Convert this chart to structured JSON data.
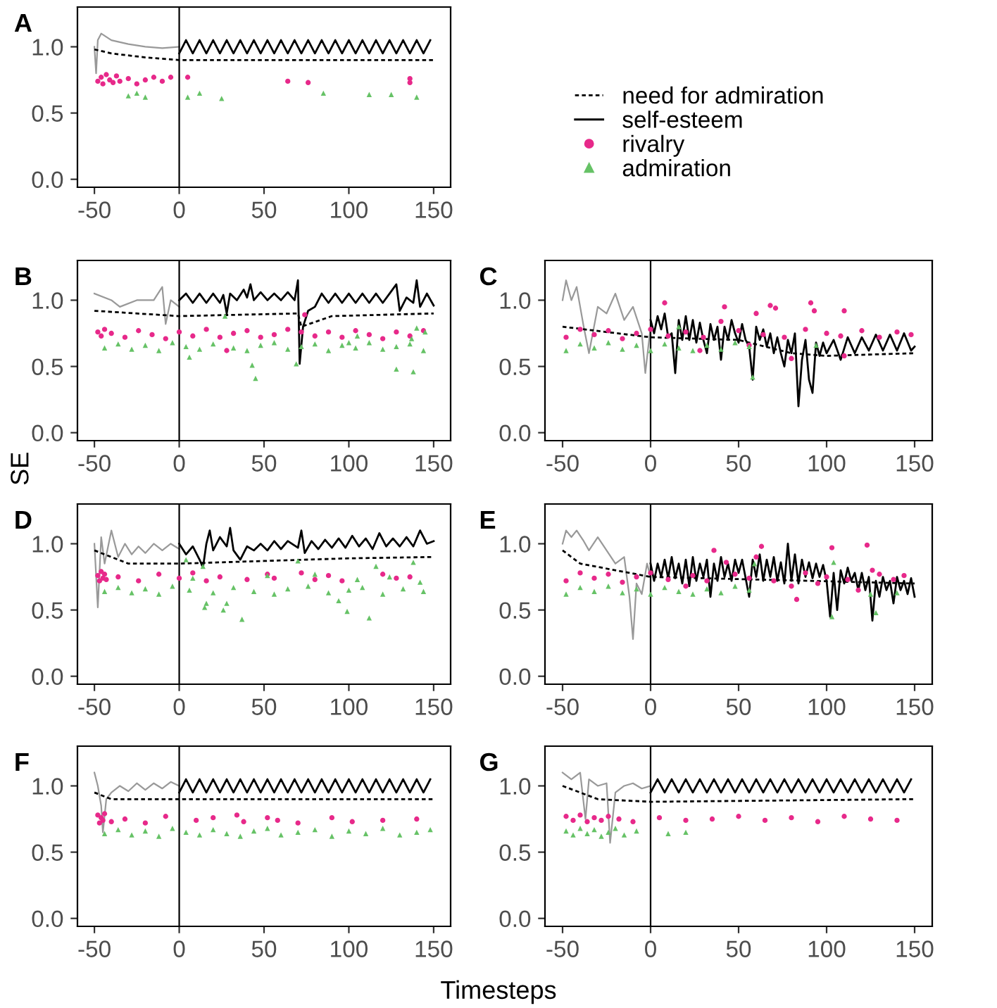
{
  "chart_data": [
    {
      "type": "line",
      "title": "A",
      "legend": "right",
      "xlim": [
        -60,
        160
      ],
      "ylim": [
        -0.06,
        1.3
      ],
      "xticks": [
        -50,
        0,
        50,
        100,
        150
      ],
      "yticks": [
        {
          "value": 0,
          "label": "0.0"
        },
        {
          "value": 0.5,
          "label": "0.5"
        },
        {
          "value": 1,
          "label": "1.0"
        }
      ],
      "ref_lines": [
        {
          "axis": "x",
          "value": 0,
          "color": "#000000"
        }
      ],
      "series": [
        {
          "type": "line",
          "color": "#999999",
          "x": [
            -50,
            -49,
            -48,
            -46,
            -40,
            -30,
            -20,
            -10,
            0
          ],
          "values": [
            1.0,
            0.8,
            1.05,
            1.1,
            1.05,
            1.02,
            1.0,
            0.99,
            1.0
          ]
        },
        {
          "name": "need for admiration",
          "type": "line",
          "line_style": "dashed",
          "color": "#000000",
          "x": [
            -50,
            -40,
            -20,
            0,
            150
          ],
          "values": [
            0.98,
            0.95,
            0.92,
            0.9,
            0.9
          ]
        },
        {
          "name": "self-esteem",
          "type": "line",
          "line_style": "solid",
          "color": "#000000",
          "x": [
            0,
            4,
            8,
            12,
            16,
            20,
            24,
            28,
            32,
            36,
            40,
            44,
            48,
            52,
            56,
            60,
            64,
            68,
            72,
            76,
            80,
            84,
            88,
            92,
            96,
            100,
            104,
            108,
            112,
            116,
            120,
            124,
            128,
            132,
            136,
            140,
            144,
            148
          ],
          "values": [
            0.95,
            1.05,
            0.95,
            1.05,
            0.95,
            1.05,
            0.95,
            1.05,
            0.95,
            1.05,
            0.95,
            1.05,
            0.95,
            1.05,
            0.95,
            1.05,
            0.95,
            1.05,
            0.95,
            1.05,
            0.95,
            1.05,
            0.95,
            1.05,
            0.95,
            1.05,
            0.95,
            1.05,
            0.95,
            1.05,
            0.95,
            1.05,
            0.95,
            1.05,
            0.95,
            1.05,
            0.95,
            1.05
          ]
        },
        {
          "name": "rivalry",
          "type": "scatter",
          "marker": "circle",
          "color": "#e7298a",
          "x": [
            -48,
            -46,
            -45,
            -43,
            -41,
            -39,
            -37,
            -35,
            -30,
            -25,
            -20,
            -15,
            -10,
            -5,
            5,
            64,
            76,
            136,
            136
          ],
          "values": [
            0.74,
            0.77,
            0.72,
            0.79,
            0.75,
            0.73,
            0.78,
            0.74,
            0.76,
            0.72,
            0.75,
            0.77,
            0.74,
            0.77,
            0.77,
            0.74,
            0.73,
            0.76,
            0.73
          ]
        },
        {
          "name": "admiration",
          "type": "scatter",
          "marker": "triangle",
          "color": "#66c266",
          "x": [
            -30,
            -25,
            -20,
            5,
            12,
            25,
            85,
            112,
            125,
            140
          ],
          "values": [
            0.63,
            0.65,
            0.62,
            0.62,
            0.65,
            0.61,
            0.65,
            0.64,
            0.64,
            0.62
          ]
        }
      ]
    },
    {
      "type": "line",
      "title": "B",
      "xlim": [
        -60,
        160
      ],
      "ylim": [
        -0.06,
        1.3
      ],
      "xticks": [
        -50,
        0,
        50,
        100,
        150
      ],
      "yticks": [
        {
          "value": 0,
          "label": "0.0"
        },
        {
          "value": 0.5,
          "label": "0.5"
        },
        {
          "value": 1,
          "label": "1.0"
        }
      ],
      "ref_lines": [
        {
          "axis": "x",
          "value": 0,
          "color": "#000000"
        }
      ],
      "series": [
        {
          "type": "line",
          "color": "#999999",
          "x": [
            -50,
            -40,
            -35,
            -25,
            -15,
            -10,
            -8,
            -5,
            0
          ],
          "values": [
            1.05,
            1.0,
            0.95,
            1.0,
            1.0,
            1.1,
            0.82,
            1.0,
            0.95
          ]
        },
        {
          "type": "line",
          "line_style": "dashed",
          "color": "#000000",
          "x": [
            -50,
            0,
            70,
            72,
            90,
            150
          ],
          "values": [
            0.92,
            0.88,
            0.9,
            0.8,
            0.88,
            0.9
          ]
        },
        {
          "type": "line",
          "line_style": "solid",
          "color": "#000000",
          "x": [
            0,
            4,
            8,
            12,
            16,
            20,
            24,
            26,
            28,
            30,
            34,
            38,
            40,
            42,
            44,
            48,
            52,
            56,
            60,
            64,
            68,
            70,
            71,
            73,
            76,
            80,
            84,
            88,
            92,
            96,
            100,
            104,
            108,
            112,
            116,
            120,
            124,
            128,
            130,
            134,
            138,
            140,
            142,
            146,
            150
          ],
          "values": [
            1.0,
            1.05,
            0.98,
            1.05,
            0.98,
            1.05,
            0.98,
            1.04,
            0.9,
            1.05,
            1.0,
            1.08,
            1.02,
            1.12,
            1.0,
            1.06,
            1.0,
            1.05,
            1.0,
            1.06,
            1.0,
            1.15,
            0.52,
            0.8,
            0.92,
            0.95,
            1.05,
            0.98,
            1.05,
            0.98,
            1.05,
            0.98,
            1.05,
            0.98,
            1.05,
            0.98,
            1.05,
            1.12,
            0.92,
            1.02,
            0.98,
            1.15,
            0.95,
            1.05,
            0.96
          ]
        },
        {
          "type": "scatter",
          "marker": "circle",
          "color": "#e7298a",
          "x": [
            -48,
            -46,
            -44,
            -40,
            -32,
            -24,
            -16,
            -8,
            0,
            8,
            16,
            24,
            32,
            40,
            48,
            56,
            64,
            80,
            88,
            96,
            104,
            112,
            120,
            128,
            136,
            144,
            28,
            72,
            74
          ],
          "values": [
            0.76,
            0.73,
            0.78,
            0.75,
            0.72,
            0.77,
            0.74,
            0.71,
            0.76,
            0.73,
            0.78,
            0.72,
            0.75,
            0.77,
            0.72,
            0.74,
            0.78,
            0.73,
            0.76,
            0.72,
            0.77,
            0.74,
            0.71,
            0.76,
            0.73,
            0.77,
            0.62,
            0.76,
            0.89
          ]
        },
        {
          "type": "scatter",
          "marker": "triangle",
          "color": "#66c266",
          "x": [
            -44,
            -36,
            -28,
            -20,
            -12,
            -4,
            4,
            12,
            20,
            32,
            40,
            48,
            56,
            64,
            72,
            80,
            88,
            96,
            104,
            112,
            120,
            128,
            136,
            144,
            27,
            6,
            43,
            45,
            69,
            100,
            105,
            128,
            138,
            140,
            145,
            137
          ],
          "values": [
            0.64,
            0.67,
            0.63,
            0.66,
            0.62,
            0.68,
            0.65,
            0.63,
            0.67,
            0.64,
            0.62,
            0.66,
            0.68,
            0.63,
            0.65,
            0.67,
            0.62,
            0.66,
            0.64,
            0.68,
            0.63,
            0.65,
            0.67,
            0.62,
            0.88,
            0.57,
            0.51,
            0.41,
            0.52,
            0.68,
            0.73,
            0.48,
            0.46,
            0.79,
            0.76,
            0.71
          ]
        }
      ]
    },
    {
      "type": "line",
      "title": "C",
      "xlim": [
        -60,
        160
      ],
      "ylim": [
        -0.06,
        1.3
      ],
      "xticks": [
        -50,
        0,
        50,
        100,
        150
      ],
      "yticks": [
        {
          "value": 0,
          "label": "0.0"
        },
        {
          "value": 0.5,
          "label": "0.5"
        },
        {
          "value": 1,
          "label": "1.0"
        }
      ],
      "ref_lines": [
        {
          "axis": "x",
          "value": 0,
          "color": "#000000"
        }
      ],
      "series": [
        {
          "type": "line",
          "color": "#999999",
          "x": [
            -50,
            -48,
            -45,
            -42,
            -38,
            -35,
            -30,
            -25,
            -20,
            -15,
            -10,
            -5,
            -3,
            0
          ],
          "values": [
            1.0,
            1.15,
            1.0,
            1.1,
            0.8,
            0.6,
            0.95,
            0.9,
            1.05,
            0.85,
            0.95,
            0.75,
            0.45,
            0.8
          ]
        },
        {
          "type": "line",
          "line_style": "dashed",
          "color": "#000000",
          "x": [
            -50,
            0,
            50,
            80,
            100,
            150
          ],
          "values": [
            0.8,
            0.72,
            0.7,
            0.6,
            0.58,
            0.6
          ]
        },
        {
          "type": "line",
          "line_style": "solid",
          "color": "#000000",
          "x": [
            0,
            2,
            4,
            6,
            8,
            10,
            12,
            14,
            16,
            18,
            20,
            22,
            24,
            26,
            28,
            30,
            32,
            34,
            36,
            38,
            40,
            42,
            44,
            46,
            48,
            50,
            52,
            54,
            56,
            58,
            60,
            62,
            64,
            66,
            68,
            70,
            72,
            74,
            76,
            78,
            80,
            82,
            84,
            86,
            88,
            90,
            92,
            94,
            96,
            98,
            100,
            104,
            108,
            112,
            116,
            120,
            124,
            128,
            132,
            136,
            140,
            144,
            148,
            150
          ],
          "values": [
            0.85,
            0.75,
            0.88,
            0.78,
            0.9,
            0.72,
            0.75,
            0.45,
            0.85,
            0.7,
            0.88,
            0.7,
            0.85,
            0.68,
            0.83,
            0.7,
            0.6,
            0.82,
            0.7,
            0.8,
            0.55,
            0.8,
            0.7,
            0.85,
            0.75,
            0.68,
            0.82,
            0.7,
            0.65,
            0.4,
            0.8,
            0.7,
            0.78,
            0.65,
            0.75,
            0.6,
            0.72,
            0.6,
            0.5,
            0.7,
            0.6,
            0.75,
            0.2,
            0.55,
            0.7,
            0.4,
            0.3,
            0.68,
            0.58,
            0.68,
            0.6,
            0.7,
            0.55,
            0.72,
            0.6,
            0.72,
            0.62,
            0.74,
            0.62,
            0.74,
            0.62,
            0.75,
            0.62,
            0.65
          ]
        },
        {
          "type": "scatter",
          "marker": "circle",
          "color": "#e7298a",
          "x": [
            -48,
            -40,
            -32,
            -24,
            -16,
            -8,
            0,
            10,
            20,
            30,
            50,
            64,
            76,
            88,
            100,
            108,
            120,
            130,
            140,
            148,
            8,
            42,
            40,
            60,
            68,
            71,
            91,
            93,
            110,
            56,
            28,
            80,
            110
          ],
          "values": [
            0.72,
            0.78,
            0.74,
            0.77,
            0.71,
            0.75,
            0.78,
            0.73,
            0.76,
            0.72,
            0.77,
            0.74,
            0.72,
            0.78,
            0.75,
            0.73,
            0.77,
            0.72,
            0.76,
            0.74,
            0.98,
            0.95,
            0.84,
            0.9,
            0.96,
            0.94,
            0.98,
            0.92,
            0.92,
            0.66,
            0.62,
            0.56,
            0.58
          ]
        },
        {
          "type": "scatter",
          "marker": "triangle",
          "color": "#66c266",
          "x": [
            -48,
            -40,
            -32,
            -24,
            -16,
            -8,
            0,
            8,
            16,
            24,
            32,
            40,
            48,
            56,
            58,
            16,
            94
          ],
          "values": [
            0.62,
            0.67,
            0.64,
            0.68,
            0.63,
            0.66,
            0.62,
            0.67,
            0.64,
            0.62,
            0.66,
            0.63,
            0.68,
            0.65,
            0.42,
            0.8,
            0.66
          ]
        }
      ]
    },
    {
      "type": "line",
      "title": "D",
      "ylabel": "SE",
      "xlim": [
        -60,
        160
      ],
      "ylim": [
        -0.06,
        1.3
      ],
      "xticks": [
        -50,
        0,
        50,
        100,
        150
      ],
      "yticks": [
        {
          "value": 0,
          "label": "0.0"
        },
        {
          "value": 0.5,
          "label": "0.5"
        },
        {
          "value": 1,
          "label": "1.0"
        }
      ],
      "ref_lines": [
        {
          "axis": "x",
          "value": 0,
          "color": "#000000"
        }
      ],
      "series": [
        {
          "type": "line",
          "color": "#999999",
          "x": [
            -50,
            -48,
            -46,
            -44,
            -40,
            -36,
            -32,
            -28,
            -24,
            -20,
            -15,
            -10,
            -5,
            0
          ],
          "values": [
            1.0,
            0.52,
            1.05,
            0.85,
            1.1,
            0.9,
            1.0,
            0.92,
            0.98,
            0.93,
            1.0,
            0.95,
            1.0,
            0.96
          ]
        },
        {
          "type": "line",
          "line_style": "dashed",
          "color": "#000000",
          "x": [
            -50,
            -30,
            0,
            50,
            100,
            150
          ],
          "values": [
            0.95,
            0.85,
            0.85,
            0.87,
            0.89,
            0.9
          ]
        },
        {
          "type": "line",
          "line_style": "solid",
          "color": "#000000",
          "x": [
            0,
            4,
            8,
            12,
            14,
            16,
            18,
            20,
            24,
            28,
            30,
            32,
            36,
            40,
            44,
            48,
            52,
            56,
            60,
            64,
            70,
            72,
            74,
            78,
            82,
            86,
            90,
            94,
            98,
            102,
            106,
            110,
            114,
            118,
            122,
            126,
            130,
            134,
            138,
            142,
            146,
            150
          ],
          "values": [
            1.0,
            0.92,
            0.98,
            0.88,
            0.82,
            1.0,
            1.1,
            0.95,
            1.05,
            0.98,
            1.12,
            0.95,
            0.88,
            0.98,
            0.95,
            1.0,
            0.95,
            1.02,
            0.96,
            1.02,
            0.97,
            1.1,
            0.93,
            1.02,
            0.96,
            1.03,
            0.97,
            1.04,
            0.97,
            1.06,
            0.98,
            1.04,
            0.96,
            1.08,
            0.98,
            1.04,
            0.98,
            1.05,
            0.98,
            1.1,
            1.0,
            1.02
          ]
        },
        {
          "type": "scatter",
          "marker": "circle",
          "color": "#e7298a",
          "x": [
            -48,
            -47,
            -46,
            -45,
            -44,
            -43,
            -36,
            -24,
            -12,
            0,
            8,
            16,
            24,
            40,
            52,
            56,
            72,
            80,
            88,
            96,
            120,
            128,
            136
          ],
          "values": [
            0.76,
            0.72,
            0.79,
            0.74,
            0.77,
            0.73,
            0.75,
            0.72,
            0.77,
            0.74,
            0.78,
            0.72,
            0.75,
            0.73,
            0.77,
            0.74,
            0.78,
            0.73,
            0.76,
            0.72,
            0.77,
            0.74,
            0.75
          ]
        },
        {
          "type": "scatter",
          "marker": "triangle",
          "color": "#66c266",
          "x": [
            -44,
            -36,
            -28,
            -20,
            -12,
            -4,
            6,
            20,
            32,
            44,
            56,
            64,
            76,
            88,
            100,
            108,
            120,
            132,
            144,
            4,
            14,
            16,
            15,
            26,
            28,
            37,
            70,
            94,
            99,
            112,
            116,
            124,
            138,
            142,
            8,
            52,
            80,
            105
          ],
          "values": [
            0.64,
            0.67,
            0.63,
            0.66,
            0.62,
            0.68,
            0.65,
            0.63,
            0.67,
            0.64,
            0.62,
            0.66,
            0.68,
            0.63,
            0.65,
            0.67,
            0.62,
            0.66,
            0.64,
            0.88,
            0.83,
            0.55,
            0.52,
            0.5,
            0.55,
            0.43,
            0.87,
            0.57,
            0.49,
            0.44,
            0.83,
            0.75,
            0.86,
            0.71,
            0.74,
            0.76,
            0.77,
            0.73
          ]
        }
      ]
    },
    {
      "type": "line",
      "title": "E",
      "xlim": [
        -60,
        160
      ],
      "ylim": [
        -0.06,
        1.3
      ],
      "xticks": [
        -50,
        0,
        50,
        100,
        150
      ],
      "yticks": [
        {
          "value": 0,
          "label": "0.0"
        },
        {
          "value": 0.5,
          "label": "0.5"
        },
        {
          "value": 1,
          "label": "1.0"
        }
      ],
      "ref_lines": [
        {
          "axis": "x",
          "value": 0,
          "color": "#000000"
        }
      ],
      "series": [
        {
          "type": "line",
          "color": "#999999",
          "x": [
            -50,
            -48,
            -45,
            -42,
            -38,
            -35,
            -30,
            -25,
            -20,
            -15,
            -12,
            -10,
            -8,
            -5,
            -2,
            0
          ],
          "values": [
            1.0,
            1.1,
            1.05,
            1.1,
            1.02,
            0.95,
            1.05,
            0.95,
            0.85,
            0.9,
            0.6,
            0.28,
            0.7,
            0.62,
            0.85,
            0.75
          ]
        },
        {
          "type": "line",
          "line_style": "dashed",
          "color": "#000000",
          "x": [
            -50,
            -40,
            0,
            150
          ],
          "values": [
            0.95,
            0.85,
            0.75,
            0.7
          ]
        },
        {
          "type": "line",
          "line_style": "solid",
          "color": "#000000",
          "x": [
            0,
            2,
            4,
            6,
            8,
            10,
            12,
            14,
            16,
            18,
            20,
            22,
            24,
            26,
            28,
            30,
            32,
            34,
            36,
            38,
            40,
            42,
            44,
            46,
            48,
            50,
            52,
            56,
            58,
            60,
            62,
            64,
            66,
            68,
            70,
            72,
            74,
            76,
            78,
            80,
            82,
            84,
            86,
            88,
            90,
            92,
            94,
            96,
            98,
            100,
            102,
            104,
            106,
            108,
            110,
            112,
            114,
            116,
            118,
            120,
            122,
            124,
            126,
            128,
            130,
            132,
            134,
            136,
            138,
            140,
            142,
            144,
            146,
            148,
            150
          ],
          "values": [
            0.85,
            0.72,
            0.85,
            0.75,
            0.88,
            0.74,
            0.9,
            0.74,
            0.85,
            0.7,
            0.88,
            0.68,
            0.9,
            0.72,
            0.85,
            0.75,
            0.88,
            0.6,
            0.85,
            0.72,
            0.9,
            0.75,
            0.85,
            0.72,
            0.88,
            0.78,
            0.88,
            0.6,
            0.88,
            0.75,
            0.92,
            0.72,
            0.88,
            0.75,
            0.9,
            0.72,
            0.86,
            0.7,
            1.0,
            0.72,
            0.92,
            0.7,
            0.88,
            0.75,
            0.86,
            0.74,
            0.85,
            0.75,
            0.84,
            0.72,
            0.45,
            0.78,
            0.5,
            0.8,
            0.7,
            0.82,
            0.72,
            0.78,
            0.65,
            0.78,
            0.65,
            0.75,
            0.42,
            0.72,
            0.6,
            0.75,
            0.65,
            0.72,
            0.55,
            0.75,
            0.65,
            0.72,
            0.62,
            0.74,
            0.6
          ]
        },
        {
          "type": "scatter",
          "marker": "circle",
          "color": "#e7298a",
          "x": [
            -48,
            -40,
            -32,
            -24,
            -16,
            -8,
            0,
            10,
            24,
            32,
            48,
            56,
            70,
            88,
            100,
            112,
            130,
            144,
            36,
            43,
            20,
            63,
            60,
            80,
            83,
            95,
            103,
            123,
            126,
            118,
            138
          ],
          "values": [
            0.72,
            0.78,
            0.74,
            0.77,
            0.71,
            0.75,
            0.78,
            0.73,
            0.76,
            0.72,
            0.77,
            0.74,
            0.72,
            0.78,
            0.75,
            0.73,
            0.77,
            0.76,
            0.95,
            0.86,
            0.68,
            0.98,
            0.9,
            0.68,
            0.58,
            0.7,
            0.97,
            0.99,
            0.8,
            0.65,
            0.73
          ]
        },
        {
          "type": "scatter",
          "marker": "triangle",
          "color": "#66c266",
          "x": [
            -48,
            -40,
            -32,
            -24,
            -16,
            -8,
            0,
            8,
            16,
            24,
            32,
            40,
            48,
            56,
            59,
            104,
            103,
            128,
            125,
            140
          ],
          "values": [
            0.62,
            0.67,
            0.64,
            0.68,
            0.63,
            0.66,
            0.62,
            0.67,
            0.64,
            0.62,
            0.66,
            0.63,
            0.68,
            0.65,
            0.85,
            0.86,
            0.45,
            0.48,
            0.62,
            0.63
          ]
        }
      ]
    },
    {
      "type": "line",
      "title": "F",
      "xlabel": "Timesteps",
      "xlim": [
        -60,
        160
      ],
      "ylim": [
        -0.06,
        1.3
      ],
      "xticks": [
        -50,
        0,
        50,
        100,
        150
      ],
      "yticks": [
        {
          "value": 0,
          "label": "0.0"
        },
        {
          "value": 0.5,
          "label": "0.5"
        },
        {
          "value": 1,
          "label": "1.0"
        }
      ],
      "ref_lines": [
        {
          "axis": "x",
          "value": 0,
          "color": "#000000"
        }
      ],
      "series": [
        {
          "type": "line",
          "color": "#999999",
          "x": [
            -50,
            -48,
            -46,
            -45,
            -43,
            -40,
            -35,
            -30,
            -25,
            -20,
            -15,
            -10,
            -5,
            0
          ],
          "values": [
            1.1,
            1.0,
            0.85,
            0.65,
            0.9,
            0.95,
            1.0,
            0.96,
            1.02,
            0.97,
            1.02,
            0.98,
            1.03,
            1.0
          ]
        },
        {
          "type": "line",
          "line_style": "dashed",
          "color": "#000000",
          "x": [
            -50,
            -40,
            0,
            150
          ],
          "values": [
            0.95,
            0.9,
            0.9,
            0.9
          ]
        },
        {
          "type": "line",
          "line_style": "solid",
          "color": "#000000",
          "x": [
            0,
            4,
            8,
            12,
            16,
            20,
            24,
            28,
            32,
            36,
            40,
            44,
            48,
            52,
            56,
            60,
            64,
            68,
            72,
            76,
            80,
            84,
            88,
            92,
            96,
            100,
            104,
            108,
            112,
            116,
            120,
            124,
            128,
            132,
            136,
            140,
            144,
            148
          ],
          "values": [
            0.95,
            1.05,
            0.95,
            1.05,
            0.95,
            1.05,
            0.95,
            1.05,
            0.95,
            1.05,
            0.95,
            1.05,
            0.95,
            1.05,
            0.95,
            1.05,
            0.95,
            1.05,
            0.95,
            1.05,
            0.95,
            1.05,
            0.95,
            1.05,
            0.95,
            1.05,
            0.95,
            1.05,
            0.95,
            1.05,
            0.95,
            1.05,
            0.95,
            1.05,
            0.95,
            1.05,
            0.95,
            1.05
          ]
        },
        {
          "type": "scatter",
          "marker": "circle",
          "color": "#e7298a",
          "x": [
            -48,
            -47,
            -46,
            -45,
            -44,
            -40,
            -32,
            -20,
            -8,
            10,
            20,
            34,
            38,
            52,
            58,
            70,
            90,
            102,
            120,
            140
          ],
          "values": [
            0.78,
            0.72,
            0.76,
            0.74,
            0.79,
            0.73,
            0.75,
            0.72,
            0.77,
            0.74,
            0.76,
            0.78,
            0.73,
            0.76,
            0.74,
            0.72,
            0.76,
            0.73,
            0.74,
            0.75
          ]
        },
        {
          "type": "scatter",
          "marker": "triangle",
          "color": "#66c266",
          "x": [
            -44,
            -36,
            -28,
            -20,
            -12,
            -4,
            4,
            12,
            20,
            28,
            36,
            44,
            52,
            60,
            70,
            80,
            90,
            100,
            110,
            120,
            130,
            140,
            148
          ],
          "values": [
            0.64,
            0.67,
            0.63,
            0.66,
            0.62,
            0.68,
            0.65,
            0.63,
            0.67,
            0.64,
            0.62,
            0.66,
            0.68,
            0.63,
            0.65,
            0.67,
            0.62,
            0.66,
            0.64,
            0.68,
            0.63,
            0.65,
            0.67
          ]
        }
      ]
    },
    {
      "type": "line",
      "title": "G",
      "xlim": [
        -60,
        160
      ],
      "ylim": [
        -0.06,
        1.3
      ],
      "xticks": [
        -50,
        0,
        50,
        100,
        150
      ],
      "yticks": [
        {
          "value": 0,
          "label": "0.0"
        },
        {
          "value": 0.5,
          "label": "0.5"
        },
        {
          "value": 1,
          "label": "1.0"
        }
      ],
      "ref_lines": [
        {
          "axis": "x",
          "value": 0,
          "color": "#000000"
        }
      ],
      "series": [
        {
          "type": "line",
          "color": "#999999",
          "x": [
            -50,
            -45,
            -40,
            -37,
            -35,
            -30,
            -25,
            -23,
            -20,
            -15,
            -10,
            -5,
            0
          ],
          "values": [
            1.1,
            1.05,
            1.1,
            0.75,
            1.05,
            1.0,
            1.02,
            0.57,
            0.95,
            1.0,
            1.02,
            0.98,
            1.0
          ]
        },
        {
          "type": "line",
          "line_style": "dashed",
          "color": "#000000",
          "x": [
            -50,
            -30,
            0,
            150
          ],
          "values": [
            1.0,
            0.9,
            0.88,
            0.9
          ]
        },
        {
          "type": "line",
          "line_style": "solid",
          "color": "#000000",
          "x": [
            0,
            4,
            8,
            12,
            16,
            20,
            24,
            28,
            32,
            36,
            40,
            44,
            48,
            52,
            56,
            60,
            64,
            68,
            72,
            76,
            80,
            84,
            88,
            92,
            96,
            100,
            104,
            108,
            112,
            116,
            120,
            124,
            128,
            132,
            136,
            140,
            144,
            148
          ],
          "values": [
            0.95,
            1.05,
            0.95,
            1.05,
            0.95,
            1.05,
            0.95,
            1.05,
            0.95,
            1.05,
            0.95,
            1.05,
            0.95,
            1.05,
            0.95,
            1.05,
            0.95,
            1.05,
            0.95,
            1.05,
            0.95,
            1.05,
            0.95,
            1.05,
            0.95,
            1.05,
            0.95,
            1.05,
            0.95,
            1.05,
            0.95,
            1.05,
            0.95,
            1.05,
            0.95,
            1.05,
            0.95,
            1.05
          ]
        },
        {
          "type": "scatter",
          "marker": "circle",
          "color": "#e7298a",
          "x": [
            -48,
            -44,
            -40,
            -36,
            -32,
            -28,
            -24,
            -18,
            -10,
            5,
            20,
            35,
            50,
            65,
            80,
            95,
            110,
            125,
            140
          ],
          "values": [
            0.77,
            0.74,
            0.78,
            0.73,
            0.76,
            0.74,
            0.77,
            0.75,
            0.73,
            0.76,
            0.74,
            0.75,
            0.77,
            0.74,
            0.76,
            0.73,
            0.77,
            0.75,
            0.74
          ]
        },
        {
          "type": "scatter",
          "marker": "triangle",
          "color": "#66c266",
          "x": [
            -48,
            -44,
            -40,
            -36,
            -32,
            -28,
            -24,
            -20,
            -15,
            -8,
            10,
            20
          ],
          "values": [
            0.66,
            0.63,
            0.68,
            0.64,
            0.67,
            0.62,
            0.65,
            0.68,
            0.63,
            0.66,
            0.64,
            0.65
          ]
        }
      ]
    }
  ]
}
